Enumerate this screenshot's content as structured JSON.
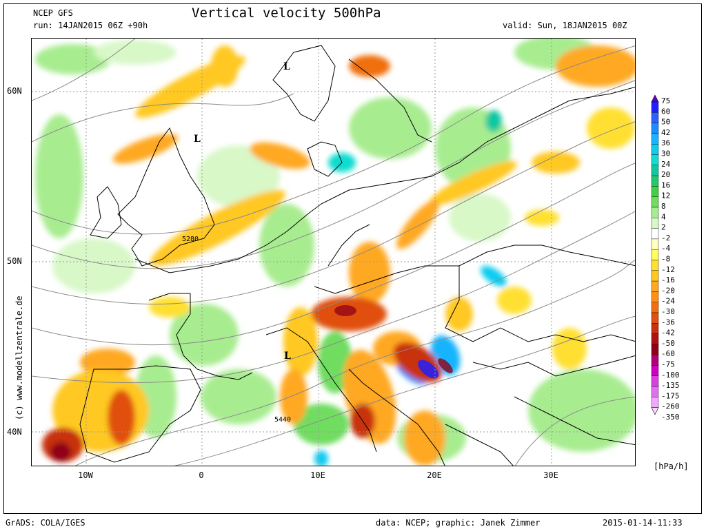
{
  "header": {
    "model": "NCEP GFS",
    "run": "run: 14JAN2015 06Z +90h",
    "title": "Vertical velocity 500hPa",
    "valid": "valid: Sun, 18JAN2015 00Z"
  },
  "axes": {
    "lat_labels": [
      "60N",
      "50N",
      "40N"
    ],
    "lon_labels": [
      "10W",
      "0",
      "10E",
      "20E",
      "30E"
    ]
  },
  "annotations": {
    "contours": [
      "5280",
      "5440"
    ],
    "lows": [
      "L",
      "L",
      "L"
    ]
  },
  "legend": {
    "labels": [
      "75",
      "60",
      "50",
      "42",
      "36",
      "30",
      "24",
      "20",
      "16",
      "12",
      "8",
      "4",
      "2",
      "-2",
      "-4",
      "-8",
      "-12",
      "-16",
      "-20",
      "-24",
      "-30",
      "-36",
      "-42",
      "-50",
      "-60",
      "-75",
      "-100",
      "-135",
      "-175",
      "-260",
      "-350"
    ],
    "colors": [
      "#6000c8",
      "#2020ff",
      "#2c60ff",
      "#1c8cff",
      "#18b4ff",
      "#10ccf0",
      "#10dcd0",
      "#10c8a0",
      "#20c870",
      "#40d040",
      "#70dc60",
      "#a8ec90",
      "#d8f8c8",
      "#ffffff",
      "#ffffc0",
      "#ffff60",
      "#ffe030",
      "#ffc820",
      "#ffa820",
      "#ff9010",
      "#f07010",
      "#e05010",
      "#c83010",
      "#b01010",
      "#900018",
      "#b0007c",
      "#d000c0",
      "#d840e0",
      "#e070f0",
      "#f0a8ff",
      "#ffd8ff"
    ],
    "unit": "[hPa/h]"
  },
  "footer": {
    "left": "GrADS: COLA/IGES",
    "center": "data: NCEP; graphic: Janek Zimmer",
    "right": "2015-01-14-11:33"
  },
  "watermark": "(c) www.modellzentrale.de"
}
